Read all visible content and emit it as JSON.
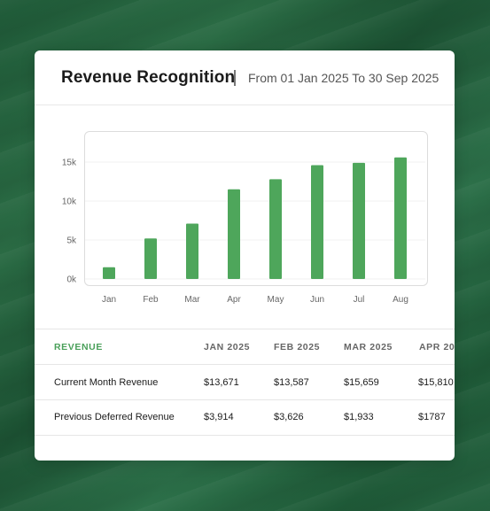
{
  "header": {
    "title": "Revenue Recognition",
    "range": "From 01 Jan 2025 To 30 Sep 2025"
  },
  "colors": {
    "bar": "#4ea65b",
    "accent": "#4aa05a"
  },
  "chart_data": {
    "type": "bar",
    "categories": [
      "Jan",
      "Feb",
      "Mar",
      "Apr",
      "May",
      "Jun",
      "Jul",
      "Aug"
    ],
    "values": [
      1500,
      5200,
      7100,
      11500,
      12800,
      14600,
      14900,
      15600
    ],
    "yticks": [
      "0k",
      "5k",
      "10k",
      "15k"
    ],
    "ylim": [
      0,
      18000
    ],
    "grid": true
  },
  "table": {
    "headers": [
      "REVENUE",
      "JAN 2025",
      "FEB 2025",
      "MAR 2025",
      "APR 20"
    ],
    "rows": [
      [
        "Current Month Revenue",
        "$13,671",
        "$13,587",
        "$15,659",
        "$15,810"
      ],
      [
        "Previous Deferred Revenue",
        "$3,914",
        "$3,626",
        "$1,933",
        "$1787"
      ]
    ]
  }
}
